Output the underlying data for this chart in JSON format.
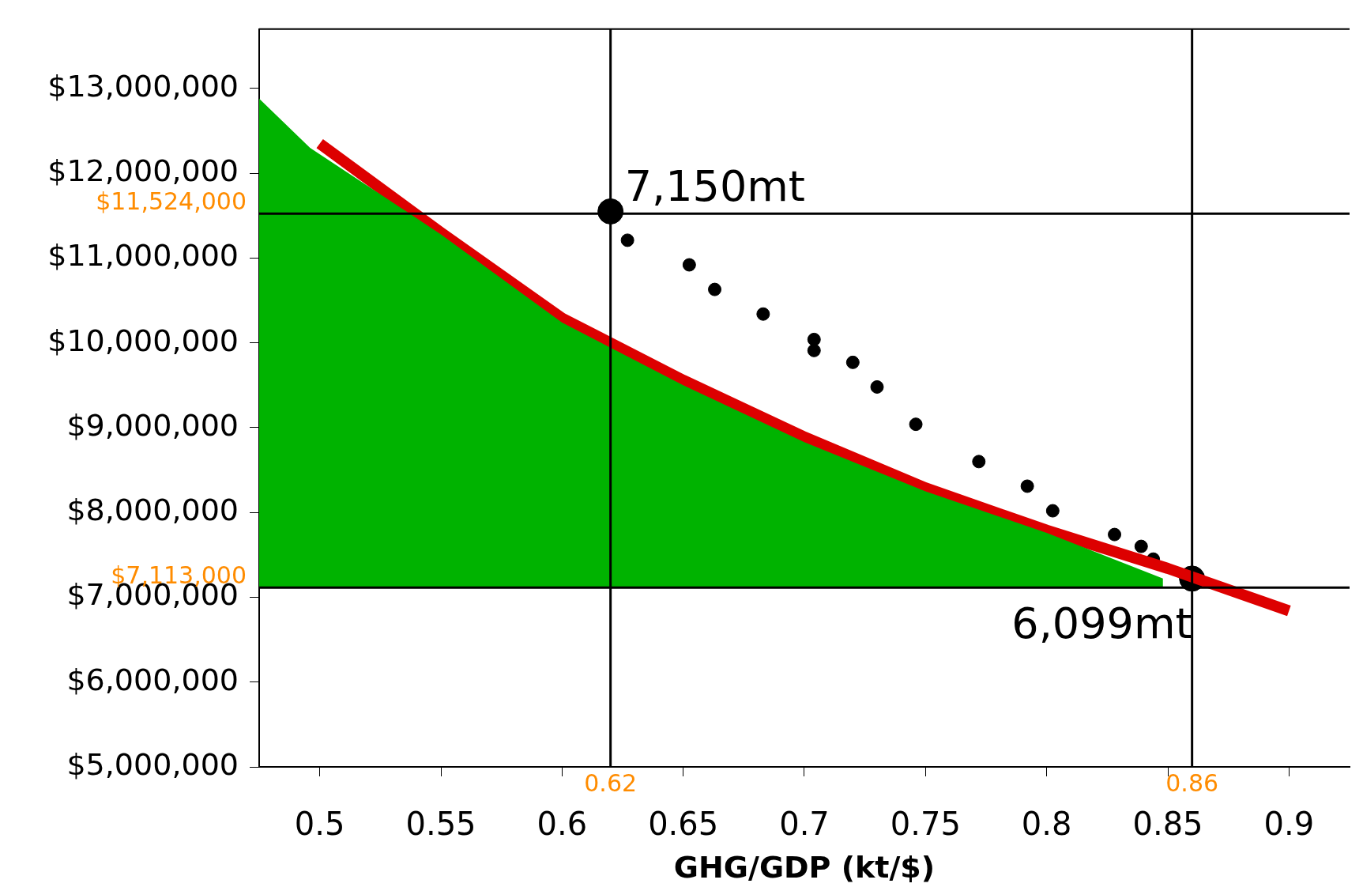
{
  "chart_data": {
    "type": "line",
    "xlabel": "GHG/GDP (kt/$)",
    "xlim": [
      0.475,
      0.925
    ],
    "xticks": [
      0.5,
      0.55,
      0.6,
      0.65,
      0.7,
      0.75,
      0.8,
      0.85,
      0.9
    ],
    "ylim": [
      5000000,
      13700000
    ],
    "yticks": [
      {
        "value": 5000000,
        "label": "$5,000,000"
      },
      {
        "value": 6000000,
        "label": "$6,000,000"
      },
      {
        "value": 7000000,
        "label": "$7,000,000"
      },
      {
        "value": 8000000,
        "label": "$8,000,000"
      },
      {
        "value": 9000000,
        "label": "$9,000,000"
      },
      {
        "value": 10000000,
        "label": "$10,000,000"
      },
      {
        "value": 11000000,
        "label": "$11,000,000"
      },
      {
        "value": 12000000,
        "label": "$12,000,000"
      },
      {
        "value": 13000000,
        "label": "$13,000,000"
      }
    ],
    "grid": false,
    "legend": false,
    "series": [
      {
        "type": "area",
        "color": "#00b300",
        "x": [
          0.475,
          0.496,
          0.55,
          0.6,
          0.65,
          0.7,
          0.75,
          0.8,
          0.848
        ],
        "values": [
          12880000,
          12300000,
          11280000,
          10240000,
          9500000,
          8830000,
          8250000,
          7760000,
          7220000
        ]
      },
      {
        "color": "#dd0000",
        "x": [
          0.5,
          0.55,
          0.6,
          0.65,
          0.7,
          0.75,
          0.8,
          0.85,
          0.9
        ],
        "values": [
          12350000,
          11300000,
          10290000,
          9560000,
          8890000,
          8290000,
          7790000,
          7340000,
          6840000
        ]
      },
      {
        "type": "scatter",
        "color": "#000000",
        "marker": "circle",
        "x": [
          0.627,
          0.6525,
          0.663,
          0.683,
          0.704,
          0.704,
          0.72,
          0.73,
          0.746,
          0.772,
          0.792,
          0.8025,
          0.828,
          0.839,
          0.844
        ],
        "values": [
          11210000,
          10920000,
          10630000,
          10340000,
          10040000,
          9910000,
          9770000,
          9480000,
          9040000,
          8600000,
          8310000,
          8020000,
          7740000,
          7600000,
          7450000
        ]
      },
      {
        "type": "bubble",
        "color": "#000000",
        "x": [
          0.62,
          0.86
        ],
        "values": [
          11550000,
          7220000
        ],
        "sizes": [
          1,
          1
        ]
      }
    ],
    "ref_lines": [
      {
        "axis": "y",
        "value": 11524000,
        "label": "$11,524,000",
        "color": "#000000"
      },
      {
        "axis": "y",
        "value": 7113000,
        "label": "$7,113,000",
        "color": "#000000"
      },
      {
        "axis": "x",
        "value": 0.62,
        "label": "0.62",
        "color": "#000000"
      },
      {
        "axis": "x",
        "value": 0.86,
        "label": "0.86",
        "color": "#000000"
      }
    ],
    "annotations": [
      {
        "text": "7,150mt",
        "x": 0.62,
        "y": 11550000
      },
      {
        "text": "6,099mt",
        "x": 0.86,
        "y": 7220000
      }
    ]
  }
}
